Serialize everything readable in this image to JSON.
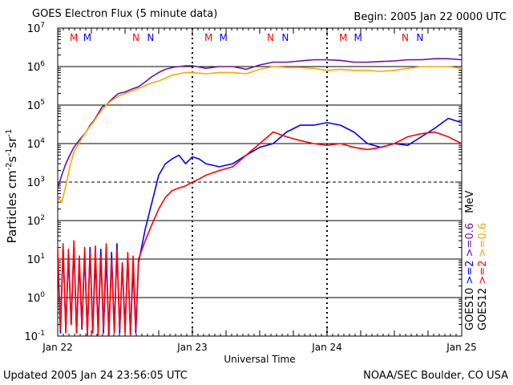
{
  "header": {
    "title": "GOES Electron Flux (5 minute data)",
    "begin": "Begin: 2005 Jan 22 0000 UTC"
  },
  "footer": {
    "updated": "Updated 2005 Jan 24 23:56:05 UTC",
    "credit": "NOAA/SEC Boulder, CO USA"
  },
  "colors": {
    "goes12_ge2": "#ff0000",
    "goes12_ge06": "#ffa500",
    "goes10_ge2": "#0000ff",
    "goes10_ge06": "#6a0dad",
    "grid": "#000000"
  },
  "chart_data": {
    "type": "line",
    "title": "GOES Electron Flux (5 minute data)",
    "xlabel": "Universal Time",
    "ylabel": "Particles cm⁻²s⁻¹sr⁻¹",
    "ylabel_parts": {
      "base": "Particles cm",
      "e1": "-2",
      "mid": "s",
      "e2": "-1",
      "mid2": "sr",
      "e3": "-1"
    },
    "x_unit": "days since 2005 Jan 22 0000 UTC",
    "xlim": [
      0,
      3
    ],
    "x_ticks": [
      {
        "x": 0,
        "label": "Jan 22"
      },
      {
        "x": 1,
        "label": "Jan 23"
      },
      {
        "x": 2,
        "label": "Jan 24"
      },
      {
        "x": 3,
        "label": "Jan 25"
      }
    ],
    "y_scale": "log10",
    "ylim_exp": [
      -1,
      7
    ],
    "y_tick_exponents": [
      -1,
      0,
      1,
      2,
      3,
      4,
      5,
      6,
      7
    ],
    "solid_gridlines_exp": [
      0,
      1,
      2,
      4,
      5,
      6
    ],
    "dashed_gridlines_exp": [
      3
    ],
    "dashed_day_lines_x": [
      1,
      2
    ],
    "legend": {
      "placement": "right-vertical",
      "groups": [
        {
          "satellite": "GOES12",
          "entries": [
            {
              "text": ">=2",
              "color": "#ff0000"
            },
            {
              "text": ">=0.6",
              "color": "#ffa500"
            }
          ]
        },
        {
          "satellite": "GOES10",
          "entries": [
            {
              "text": ">=2",
              "color": "#0000ff"
            },
            {
              "text": ">=0.6",
              "color": "#6a0dad"
            }
          ]
        }
      ],
      "unit": "MeV"
    },
    "markers": [
      {
        "x": 0.12,
        "label": "M",
        "color": "#ff0000"
      },
      {
        "x": 0.22,
        "label": "M",
        "color": "#0000ff"
      },
      {
        "x": 0.58,
        "label": "N",
        "color": "#ff0000"
      },
      {
        "x": 0.69,
        "label": "N",
        "color": "#0000ff"
      },
      {
        "x": 1.12,
        "label": "M",
        "color": "#ff0000"
      },
      {
        "x": 1.23,
        "label": "M",
        "color": "#0000ff"
      },
      {
        "x": 1.58,
        "label": "N",
        "color": "#ff0000"
      },
      {
        "x": 1.69,
        "label": "N",
        "color": "#0000ff"
      },
      {
        "x": 2.12,
        "label": "M",
        "color": "#ff0000"
      },
      {
        "x": 2.23,
        "label": "M",
        "color": "#0000ff"
      },
      {
        "x": 2.58,
        "label": "N",
        "color": "#ff0000"
      },
      {
        "x": 2.69,
        "label": "N",
        "color": "#0000ff"
      }
    ],
    "series": [
      {
        "name": "GOES10 >=0.6 MeV",
        "color": "#6a0dad",
        "x": [
          0,
          0.03,
          0.06,
          0.09,
          0.12,
          0.15,
          0.18,
          0.21,
          0.24,
          0.27,
          0.3,
          0.33,
          0.36,
          0.4,
          0.45,
          0.5,
          0.55,
          0.6,
          0.65,
          0.7,
          0.75,
          0.8,
          0.85,
          0.9,
          0.95,
          1.0,
          1.1,
          1.2,
          1.3,
          1.4,
          1.5,
          1.6,
          1.7,
          1.8,
          1.9,
          2.0,
          2.1,
          2.2,
          2.3,
          2.4,
          2.5,
          2.6,
          2.7,
          2.8,
          2.9,
          3.0
        ],
        "y": [
          700,
          1500,
          3000,
          5000,
          8000,
          11000,
          15000,
          20000,
          30000,
          40000,
          60000,
          90000,
          100000,
          140000,
          200000,
          220000,
          260000,
          300000,
          400000,
          550000,
          700000,
          850000,
          950000,
          1000000,
          1050000,
          1050000,
          900000,
          1000000,
          1000000,
          850000,
          1100000,
          1300000,
          1300000,
          1400000,
          1500000,
          1500000,
          1450000,
          1300000,
          1300000,
          1350000,
          1400000,
          1500000,
          1500000,
          1600000,
          1600000,
          1500000
        ]
      },
      {
        "name": "GOES12 >=0.6 MeV",
        "color": "#ffa500",
        "x": [
          0,
          0.03,
          0.06,
          0.09,
          0.12,
          0.15,
          0.18,
          0.21,
          0.24,
          0.27,
          0.3,
          0.33,
          0.36,
          0.4,
          0.45,
          0.5,
          0.55,
          0.6,
          0.65,
          0.7,
          0.75,
          0.8,
          0.85,
          0.9,
          0.95,
          1.0,
          1.1,
          1.2,
          1.3,
          1.4,
          1.5,
          1.6,
          1.7,
          1.8,
          1.9,
          2.0,
          2.1,
          2.2,
          2.3,
          2.4,
          2.5,
          2.6,
          2.7,
          2.8,
          2.9,
          3.0
        ],
        "y": [
          400,
          300,
          800,
          2500,
          6000,
          9000,
          14000,
          20000,
          28000,
          38000,
          55000,
          75000,
          100000,
          130000,
          170000,
          200000,
          230000,
          270000,
          320000,
          380000,
          420000,
          500000,
          600000,
          650000,
          700000,
          700000,
          650000,
          700000,
          700000,
          650000,
          850000,
          1000000,
          950000,
          950000,
          900000,
          800000,
          850000,
          800000,
          800000,
          750000,
          800000,
          900000,
          1000000,
          1000000,
          1000000,
          900000
        ]
      },
      {
        "name": "GOES10 >=2 MeV",
        "color": "#0000ff",
        "x": [
          0,
          0.02,
          0.04,
          0.06,
          0.08,
          0.1,
          0.12,
          0.14,
          0.16,
          0.18,
          0.2,
          0.22,
          0.24,
          0.26,
          0.28,
          0.3,
          0.32,
          0.34,
          0.36,
          0.38,
          0.4,
          0.42,
          0.44,
          0.46,
          0.48,
          0.5,
          0.52,
          0.54,
          0.56,
          0.58,
          0.6,
          0.65,
          0.7,
          0.75,
          0.8,
          0.85,
          0.9,
          0.95,
          1.0,
          1.05,
          1.1,
          1.2,
          1.3,
          1.4,
          1.5,
          1.6,
          1.7,
          1.8,
          1.9,
          2.0,
          2.1,
          2.2,
          2.3,
          2.4,
          2.5,
          2.6,
          2.7,
          2.8,
          2.9,
          3.0
        ],
        "y": [
          15,
          0.12,
          18,
          0.15,
          12,
          0.2,
          22,
          0.12,
          9,
          0.15,
          14,
          0.1,
          20,
          0.12,
          10,
          0.15,
          18,
          0.12,
          12,
          0.1,
          15,
          0.13,
          25,
          0.12,
          8,
          0.15,
          12,
          0.11,
          6,
          0.12,
          8,
          60,
          300,
          1500,
          3000,
          4000,
          5000,
          3000,
          4500,
          4000,
          3000,
          2500,
          3000,
          5000,
          8000,
          10000,
          20000,
          30000,
          30000,
          35000,
          30000,
          20000,
          10000,
          8000,
          10000,
          9000,
          15000,
          25000,
          45000,
          35000
        ]
      },
      {
        "name": "GOES12 >=2 MeV",
        "color": "#ff0000",
        "x": [
          0,
          0.02,
          0.04,
          0.06,
          0.08,
          0.1,
          0.12,
          0.14,
          0.16,
          0.18,
          0.2,
          0.22,
          0.24,
          0.26,
          0.28,
          0.3,
          0.32,
          0.34,
          0.36,
          0.38,
          0.4,
          0.42,
          0.44,
          0.46,
          0.48,
          0.5,
          0.52,
          0.54,
          0.56,
          0.58,
          0.6,
          0.65,
          0.7,
          0.75,
          0.8,
          0.85,
          0.9,
          0.95,
          1.0,
          1.05,
          1.1,
          1.2,
          1.3,
          1.4,
          1.5,
          1.6,
          1.7,
          1.8,
          1.9,
          2.0,
          2.1,
          2.2,
          2.3,
          2.4,
          2.5,
          2.6,
          2.7,
          2.8,
          2.9,
          3.0
        ],
        "y": [
          20,
          0.15,
          25,
          0.12,
          18,
          0.2,
          30,
          0.12,
          12,
          0.18,
          20,
          0.1,
          15,
          0.12,
          22,
          0.1,
          12,
          0.15,
          25,
          0.1,
          10,
          0.12,
          18,
          0.15,
          8,
          0.12,
          15,
          0.1,
          12,
          0.15,
          10,
          30,
          80,
          200,
          400,
          600,
          700,
          800,
          1000,
          1200,
          1500,
          2000,
          2500,
          5000,
          10000,
          20000,
          15000,
          12000,
          10000,
          9000,
          10000,
          8000,
          7000,
          8000,
          10000,
          15000,
          18000,
          20000,
          15000,
          10000
        ]
      }
    ]
  }
}
